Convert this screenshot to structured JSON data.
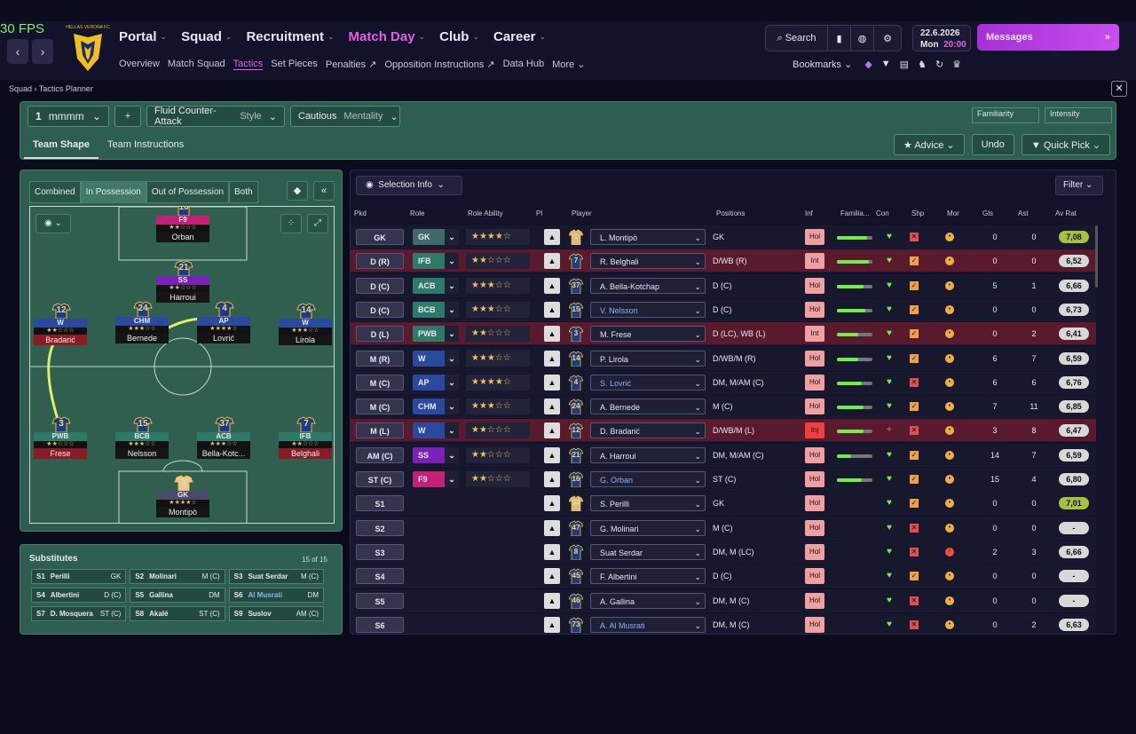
{
  "fps": "30 FPS",
  "club": {
    "name": "HELLAS VERONA FC"
  },
  "nav": {
    "items": [
      "Portal",
      "Squad",
      "Recruitment",
      "Match Day",
      "Club",
      "Career"
    ],
    "sub": [
      "Overview",
      "Match Squad",
      "Tactics",
      "Set Pieces",
      "Penalties",
      "Opposition Instructions",
      "Data Hub",
      "More"
    ]
  },
  "tools": {
    "search": "Search"
  },
  "date": {
    "date": "22.6.2026",
    "day": "Mon",
    "time": "20:00"
  },
  "messages": "Messages",
  "bookmarks": "Bookmarks",
  "breadcrumb": {
    "parent": "Squad",
    "current": "Tactics Planner"
  },
  "tactic": {
    "slot": "1",
    "name": "mmmm",
    "style": "Fluid Counter-Attack",
    "style_label": "Style",
    "mentality": "Cautious",
    "mentality_label": "Mentality",
    "familiarity": "Familiarity",
    "intensity": "Intensity",
    "tabs": [
      "Team Shape",
      "Team Instructions"
    ],
    "advice": "Advice",
    "undo": "Undo",
    "quickpick": "Quick Pick"
  },
  "pitch": {
    "tabs": [
      "Combined",
      "In Possession",
      "Out of Possession",
      "Both"
    ]
  },
  "players_on_pitch": [
    {
      "num": "16",
      "role": "F9",
      "stars": "★★☆☆☆",
      "name": "Orban",
      "color": "#c4207a"
    },
    {
      "num": "21",
      "role": "SS",
      "stars": "★★☆☆☆",
      "name": "Harroui",
      "color": "#7a22b8"
    },
    {
      "num": "12",
      "role": "W",
      "stars": "★★☆☆☆",
      "name": "Bradarić",
      "color": "#2a4aa0",
      "injured": true
    },
    {
      "num": "24",
      "role": "CHM",
      "stars": "★★★☆☆",
      "name": "Bernede",
      "color": "#2a4aa0"
    },
    {
      "num": "4",
      "role": "AP",
      "stars": "★★★★☆",
      "name": "Lovrić",
      "color": "#2a4aa0"
    },
    {
      "num": "14",
      "role": "W",
      "stars": "★★★☆☆",
      "name": "Lirola",
      "color": "#2a4aa0"
    },
    {
      "num": "3",
      "role": "PWB",
      "stars": "★★☆☆☆",
      "name": "Frese",
      "color": "#2e7a6a",
      "injured": true
    },
    {
      "num": "15",
      "role": "BCB",
      "stars": "★★★☆☆",
      "name": "Nelsson",
      "color": "#2e7a6a"
    },
    {
      "num": "37",
      "role": "ACB",
      "stars": "★★★☆☆",
      "name": "Bella-Kotc...",
      "color": "#2e7a6a"
    },
    {
      "num": "7",
      "role": "IFB",
      "stars": "★★☆☆☆",
      "name": "Belghali",
      "color": "#2e7a6a",
      "injured": true
    },
    {
      "num": "1",
      "role": "GK",
      "stars": "★★★★☆",
      "name": "Montipò",
      "color": "#4a4a6a"
    }
  ],
  "subs": {
    "title": "Substitutes",
    "count": "15 of 15",
    "items": [
      {
        "slot": "S1",
        "name": "Perilli",
        "pos": "GK"
      },
      {
        "slot": "S2",
        "name": "Molinari",
        "pos": "M (C)"
      },
      {
        "slot": "S3",
        "name": "Suat Serdar",
        "pos": "M (C)"
      },
      {
        "slot": "S4",
        "name": "Albertini",
        "pos": "D (C)"
      },
      {
        "slot": "S5",
        "name": "Gallina",
        "pos": "DM"
      },
      {
        "slot": "S6",
        "name": "Al Musrati",
        "pos": "DM"
      },
      {
        "slot": "S7",
        "name": "D. Mosquera",
        "pos": "ST (C)"
      },
      {
        "slot": "S8",
        "name": "Akalé",
        "pos": "ST (C)"
      },
      {
        "slot": "S9",
        "name": "Suslov",
        "pos": "AM (C)"
      }
    ]
  },
  "table": {
    "selection": "Selection Info",
    "filter": "Filter",
    "headers": [
      "Pkd",
      "Role",
      "Role Ability",
      "Pl",
      "Player",
      "Positions",
      "Inf",
      "Familia...",
      "Con",
      "Shp",
      "Mor",
      "Gls",
      "Ast",
      "Av Rat"
    ],
    "rows": [
      {
        "pkd": "GK",
        "role": "GK",
        "rc": "#3e6a68",
        "stars": "★★★★☆",
        "num": "1",
        "player": "L. Montipò",
        "pos": "GK",
        "inf": "Hol",
        "fam": 0.85,
        "con": "♥",
        "shp": "✕",
        "mor": "•",
        "gls": "0",
        "ast": "0",
        "rat": "7,08",
        "bg": "#17172e"
      },
      {
        "pkd": "D (R)",
        "role": "IFB",
        "rc": "#2e7a6a",
        "stars": "★★☆☆☆",
        "num": "7",
        "player": "R. Belghali",
        "pos": "D/WB (R)",
        "inf": "Int",
        "fam": 0.9,
        "con": "♥",
        "shp": "✓",
        "mor": "•",
        "gls": "0",
        "ast": "0",
        "rat": "6,52",
        "bg": "#5a1a2e"
      },
      {
        "pkd": "D (C)",
        "role": "ACB",
        "rc": "#2e7a6a",
        "stars": "★★★☆☆",
        "num": "37",
        "player": "A. Bella-Kotchap",
        "pos": "D (C)",
        "inf": "Hol",
        "fam": 0.75,
        "con": "♥",
        "shp": "✓",
        "mor": "•",
        "gls": "5",
        "ast": "1",
        "rat": "6,66",
        "bg": "#17172e"
      },
      {
        "pkd": "D (C)",
        "role": "BCB",
        "rc": "#2e7a6a",
        "stars": "★★★☆☆",
        "num": "15",
        "player": "V. Nelsson",
        "pos": "D (C)",
        "inf": "Hol",
        "fam": 0.8,
        "con": "♥",
        "shp": "✓",
        "mor": "•",
        "gls": "0",
        "ast": "0",
        "rat": "6,73",
        "bg": "#17172e"
      },
      {
        "pkd": "D (L)",
        "role": "PWB",
        "rc": "#2e7a6a",
        "stars": "★★☆☆☆",
        "num": "3",
        "player": "M. Frese",
        "pos": "D (LC), WB (L)",
        "inf": "Int",
        "fam": 0.6,
        "con": "♥",
        "shp": "✓",
        "mor": "•",
        "gls": "0",
        "ast": "2",
        "rat": "6,41",
        "bg": "#5a1a2e"
      },
      {
        "pkd": "M (R)",
        "role": "W",
        "rc": "#2a4aa0",
        "stars": "★★★☆☆",
        "num": "14",
        "player": "P. Lirola",
        "pos": "D/WB/M (R)",
        "inf": "Hol",
        "fam": 0.6,
        "con": "♥",
        "shp": "✓",
        "mor": "•",
        "gls": "6",
        "ast": "7",
        "rat": "6,59",
        "bg": "#17172e"
      },
      {
        "pkd": "M (C)",
        "role": "AP",
        "rc": "#2a4aa0",
        "stars": "★★★★☆",
        "num": "4",
        "player": "S. Lovrić",
        "pos": "DM, M/AM (C)",
        "inf": "Hol",
        "fam": 0.7,
        "con": "♥",
        "shp": "✕",
        "mor": "•",
        "gls": "6",
        "ast": "6",
        "rat": "6,76",
        "bg": "#17172e"
      },
      {
        "pkd": "M (C)",
        "role": "CHM",
        "rc": "#2a4aa0",
        "stars": "★★★☆☆",
        "num": "24",
        "player": "A. Bernede",
        "pos": "M (C)",
        "inf": "Hol",
        "fam": 0.75,
        "con": "♥",
        "shp": "✓",
        "mor": "•",
        "gls": "7",
        "ast": "11",
        "rat": "6,85",
        "bg": "#17172e"
      },
      {
        "pkd": "M (L)",
        "role": "W",
        "rc": "#2a4aa0",
        "stars": "★★☆☆☆",
        "num": "12",
        "player": "D. Bradarić",
        "pos": "D/WB/M (L)",
        "inf": "Inj",
        "fam": 0.75,
        "con": "+",
        "shp": "✕",
        "mor": "•",
        "gls": "3",
        "ast": "8",
        "rat": "6,47",
        "bg": "#5a1a2e"
      },
      {
        "pkd": "AM (C)",
        "role": "SS",
        "rc": "#7a22b8",
        "stars": "★★☆☆☆",
        "num": "21",
        "player": "A. Harroui",
        "pos": "DM, M/AM (C)",
        "inf": "Hol",
        "fam": 0.4,
        "con": "♥",
        "shp": "✓",
        "mor": "•",
        "gls": "14",
        "ast": "7",
        "rat": "6,59",
        "bg": "#17172e"
      },
      {
        "pkd": "ST (C)",
        "role": "F9",
        "rc": "#c4207a",
        "stars": "★★☆☆☆",
        "num": "16",
        "player": "G. Orban",
        "pos": "ST (C)",
        "inf": "Hol",
        "fam": 0.7,
        "con": "♥",
        "shp": "✓",
        "mor": "•",
        "gls": "15",
        "ast": "4",
        "rat": "6,80",
        "bg": "#17172e"
      },
      {
        "pkd": "S1",
        "role": "",
        "stars": "",
        "num": "34",
        "player": "S. Perilli",
        "pos": "GK",
        "inf": "Hol",
        "con": "♥",
        "shp": "✓",
        "mor": "•",
        "gls": "0",
        "ast": "0",
        "rat": "7,01",
        "bg": "#17172e"
      },
      {
        "pkd": "S2",
        "role": "",
        "stars": "",
        "num": "47",
        "player": "G. Molinari",
        "pos": "M (C)",
        "inf": "Hol",
        "con": "♥",
        "shp": "✕",
        "mor": "•",
        "gls": "0",
        "ast": "0",
        "rat": "-",
        "bg": "#17172e"
      },
      {
        "pkd": "S3",
        "role": "",
        "stars": "",
        "num": "8",
        "player": "Suat Serdar",
        "pos": "DM, M (LC)",
        "inf": "Hol",
        "con": "♥",
        "shp": "✕",
        "mor": "!",
        "gls": "2",
        "ast": "3",
        "rat": "6,66",
        "bg": "#17172e"
      },
      {
        "pkd": "S4",
        "role": "",
        "stars": "",
        "num": "45",
        "player": "F. Albertini",
        "pos": "D (C)",
        "inf": "Hol",
        "con": "♥",
        "shp": "✓",
        "mor": "•",
        "gls": "0",
        "ast": "0",
        "rat": "-",
        "bg": "#17172e"
      },
      {
        "pkd": "S5",
        "role": "",
        "stars": "",
        "num": "46",
        "player": "A. Gallina",
        "pos": "DM, M (C)",
        "inf": "Hol",
        "con": "♥",
        "shp": "✕",
        "mor": "•",
        "gls": "0",
        "ast": "0",
        "rat": "-",
        "bg": "#17172e"
      },
      {
        "pkd": "S6",
        "role": "",
        "stars": "",
        "num": "73",
        "player": "A. Al Musrati",
        "pos": "DM, M (C)",
        "inf": "Hol",
        "con": "♥",
        "shp": "✕",
        "mor": "•",
        "gls": "0",
        "ast": "2",
        "rat": "6,63",
        "bg": "#17172e"
      }
    ]
  }
}
